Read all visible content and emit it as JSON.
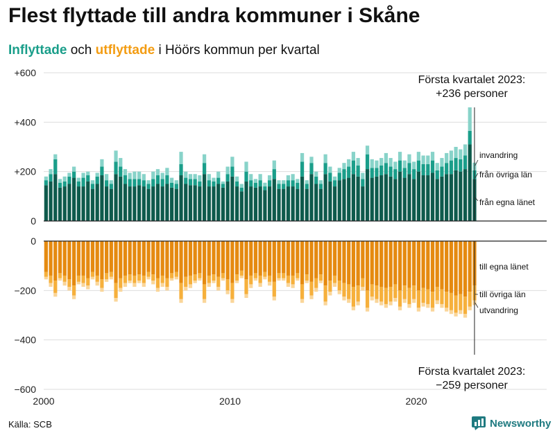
{
  "title": "Flest flyttade till andra kommuner i Skåne",
  "subtitle": {
    "in_word": "Inflyttade",
    "mid_word": "och",
    "out_word": "utflyttade",
    "rest": "i Höörs kommun per kvartal"
  },
  "source": "Källa: SCB",
  "brand": "Newsworthy",
  "colors": {
    "in_own": "#0e5a4c",
    "in_other": "#1a9e8a",
    "in_immig": "#88d3c9",
    "out_own": "#e58a10",
    "out_other": "#f6b03c",
    "out_emig": "#fad69a",
    "subtitle_in": "#1a9e8a",
    "subtitle_out": "#f39c12",
    "brand": "#1f7a80"
  },
  "chart_data": {
    "type": "bar",
    "stacked": true,
    "x_start": "2000 Q1",
    "x_end": "2023 Q1",
    "xlim": [
      2000,
      2027
    ],
    "x_ticks": [
      "2000",
      "2010",
      "2020"
    ],
    "y_ticks": [
      "+600",
      "+400",
      "+200",
      "0",
      "0",
      "−200",
      "−400",
      "−600"
    ],
    "ylim_in": [
      0,
      600
    ],
    "ylim_out": [
      -600,
      0
    ],
    "grid": true,
    "series_in": [
      {
        "name": "från egna länet",
        "values": [
          145,
          160,
          190,
          135,
          140,
          150,
          175,
          140,
          140,
          160,
          130,
          150,
          185,
          140,
          130,
          190,
          180,
          150,
          140,
          140,
          145,
          140,
          130,
          140,
          150,
          140,
          150,
          135,
          130,
          185,
          150,
          145,
          145,
          140,
          190,
          140,
          140,
          150,
          135,
          160,
          180,
          140,
          120,
          160,
          140,
          135,
          140,
          125,
          140,
          170,
          130,
          130,
          140,
          140,
          130,
          180,
          130,
          190,
          150,
          130,
          190,
          160,
          140,
          165,
          170,
          175,
          190,
          180,
          140,
          210,
          175,
          180,
          185,
          190,
          180,
          170,
          200,
          175,
          190,
          170,
          200,
          185,
          185,
          195,
          170,
          180,
          190,
          190,
          205,
          200,
          210,
          310,
          170
        ]
      },
      {
        "name": "från övriga län",
        "values": [
          20,
          30,
          60,
          20,
          20,
          30,
          25,
          20,
          35,
          25,
          20,
          30,
          35,
          25,
          20,
          50,
          40,
          35,
          30,
          30,
          25,
          25,
          20,
          30,
          35,
          30,
          35,
          20,
          20,
          45,
          25,
          25,
          25,
          20,
          45,
          25,
          20,
          25,
          15,
          30,
          40,
          20,
          15,
          40,
          25,
          20,
          25,
          15,
          25,
          40,
          20,
          20,
          25,
          25,
          25,
          60,
          20,
          45,
          30,
          20,
          45,
          35,
          25,
          30,
          40,
          45,
          55,
          45,
          30,
          60,
          40,
          35,
          40,
          45,
          40,
          40,
          45,
          40,
          45,
          40,
          45,
          45,
          45,
          50,
          35,
          40,
          45,
          55,
          50,
          50,
          55,
          55,
          35
        ]
      },
      {
        "name": "invandring",
        "values": [
          15,
          20,
          20,
          15,
          20,
          15,
          20,
          15,
          20,
          15,
          15,
          15,
          30,
          25,
          15,
          45,
          35,
          25,
          25,
          30,
          30,
          25,
          15,
          30,
          25,
          25,
          30,
          20,
          15,
          50,
          25,
          20,
          20,
          25,
          35,
          25,
          15,
          25,
          10,
          30,
          40,
          20,
          15,
          40,
          25,
          15,
          25,
          15,
          20,
          35,
          15,
          15,
          20,
          25,
          15,
          35,
          15,
          25,
          20,
          15,
          35,
          25,
          15,
          20,
          25,
          30,
          35,
          30,
          25,
          35,
          35,
          30,
          30,
          40,
          35,
          30,
          35,
          30,
          35,
          30,
          35,
          35,
          35,
          35,
          30,
          35,
          40,
          40,
          45,
          40,
          45,
          95,
          31
        ]
      }
    ],
    "series_out": [
      {
        "name": "till egna länet",
        "values": [
          -125,
          -140,
          -160,
          -130,
          -140,
          -155,
          -180,
          -140,
          -140,
          -150,
          -125,
          -140,
          -155,
          -130,
          -125,
          -170,
          -150,
          -140,
          -135,
          -140,
          -135,
          -140,
          -125,
          -135,
          -150,
          -140,
          -150,
          -130,
          -125,
          -170,
          -145,
          -140,
          -135,
          -130,
          -175,
          -140,
          -135,
          -145,
          -130,
          -155,
          -170,
          -135,
          -120,
          -155,
          -140,
          -130,
          -140,
          -125,
          -140,
          -165,
          -130,
          -130,
          -140,
          -140,
          -130,
          -175,
          -135,
          -165,
          -150,
          -135,
          -180,
          -160,
          -140,
          -160,
          -170,
          -175,
          -185,
          -180,
          -150,
          -200,
          -175,
          -180,
          -185,
          -190,
          -185,
          -175,
          -200,
          -180,
          -190,
          -180,
          -200,
          -190,
          -195,
          -205,
          -185,
          -195,
          -205,
          -210,
          -220,
          -215,
          -225,
          -205,
          -180
        ]
      },
      {
        "name": "till övriga län",
        "values": [
          -20,
          -30,
          -50,
          -20,
          -25,
          -30,
          -40,
          -25,
          -30,
          -30,
          -20,
          -25,
          -35,
          -25,
          -20,
          -60,
          -40,
          -30,
          -25,
          -30,
          -25,
          -30,
          -20,
          -25,
          -40,
          -30,
          -35,
          -20,
          -20,
          -65,
          -40,
          -35,
          -25,
          -20,
          -60,
          -30,
          -25,
          -40,
          -20,
          -45,
          -65,
          -25,
          -20,
          -60,
          -35,
          -20,
          -30,
          -20,
          -25,
          -60,
          -20,
          -20,
          -30,
          -35,
          -20,
          -60,
          -25,
          -55,
          -40,
          -25,
          -65,
          -45,
          -30,
          -40,
          -55,
          -60,
          -80,
          -65,
          -35,
          -70,
          -50,
          -55,
          -60,
          -65,
          -60,
          -55,
          -65,
          -55,
          -65,
          -55,
          -70,
          -60,
          -60,
          -65,
          -55,
          -60,
          -65,
          -70,
          -70,
          -65,
          -70,
          -60,
          -60
        ]
      },
      {
        "name": "utvandring",
        "values": [
          -10,
          -15,
          -15,
          -10,
          -15,
          -15,
          -15,
          -10,
          -15,
          -15,
          -10,
          -15,
          -15,
          -10,
          -10,
          -15,
          -15,
          -15,
          -10,
          -15,
          -10,
          -15,
          -10,
          -15,
          -15,
          -15,
          -15,
          -10,
          -10,
          -15,
          -15,
          -15,
          -10,
          -10,
          -15,
          -15,
          -10,
          -15,
          -10,
          -15,
          -15,
          -10,
          -10,
          -15,
          -15,
          -10,
          -15,
          -10,
          -15,
          -15,
          -10,
          -10,
          -15,
          -15,
          -10,
          -15,
          -10,
          -15,
          -15,
          -10,
          -15,
          -15,
          -15,
          -15,
          -15,
          -15,
          -15,
          -15,
          -15,
          -15,
          -15,
          -15,
          -15,
          -15,
          -15,
          -15,
          -15,
          -15,
          -15,
          -15,
          -15,
          -15,
          -15,
          -15,
          -15,
          -15,
          -15,
          -15,
          -15,
          -15,
          -15,
          -15,
          -19
        ]
      }
    ],
    "annotations": {
      "in_top": [
        "Första kvartalet 2023:",
        "+236 personer"
      ],
      "out_bottom": [
        "Första kvartalet 2023:",
        "−259 personer"
      ]
    }
  }
}
